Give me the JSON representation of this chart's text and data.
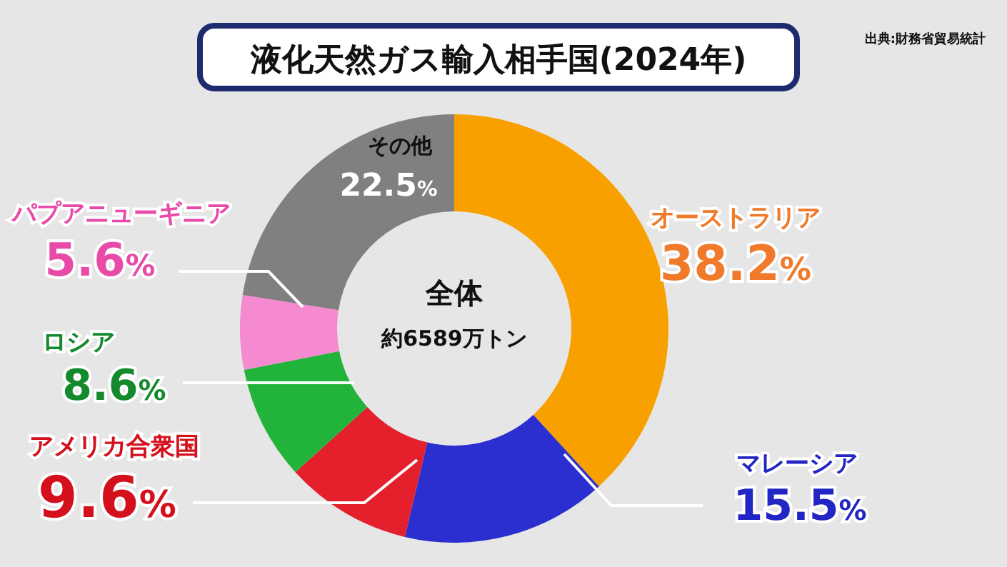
{
  "chart_data": {
    "type": "donut",
    "title": "液化天然ガス輸入相手国(2024年)",
    "categories": [
      "オーストラリア",
      "マレーシア",
      "アメリカ合衆国",
      "ロシア",
      "パプアニューギニア",
      "その他"
    ],
    "values": [
      38.2,
      15.5,
      9.6,
      8.6,
      5.6,
      22.5
    ],
    "colors": [
      "#f7a000",
      "#2b2fd0",
      "#e3202c",
      "#22b43a",
      "#f58ad0",
      "#808080"
    ],
    "value_labels": [
      "38.2%",
      "15.5%",
      "9.6%",
      "8.6%",
      "5.6%",
      "22.5%"
    ],
    "annotations": [
      "全体",
      "約6589万トン",
      "出典:財務省貿易統計"
    ]
  }
}
